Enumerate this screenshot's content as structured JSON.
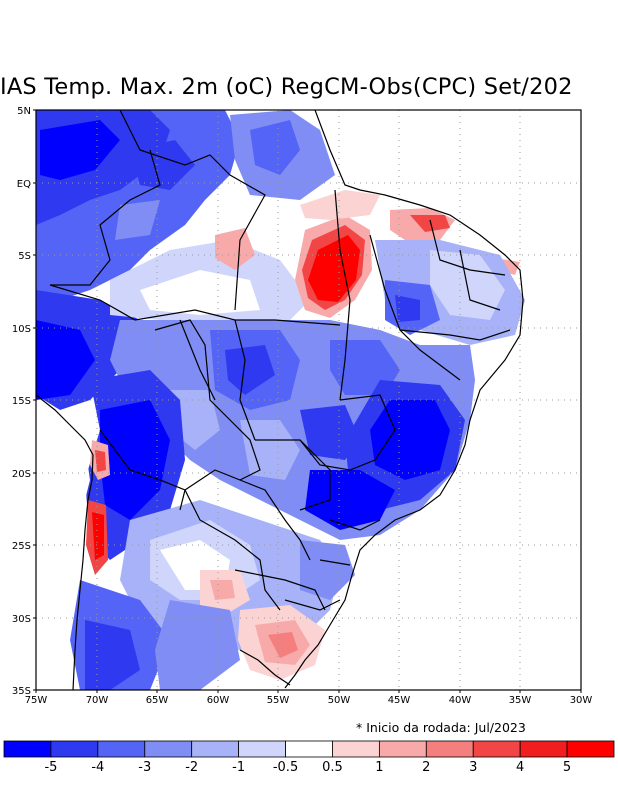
{
  "title": "IAS Temp. Max. 2m (oC) RegCM-Obs(CPC) Set/202",
  "note": "* Inicio da rodada: Jul/2023",
  "y_labels": [
    "5N",
    "EQ",
    "5S",
    "10S",
    "15S",
    "20S",
    "25S",
    "30S",
    "35S"
  ],
  "x_labels": [
    "75W",
    "70W",
    "65W",
    "60W",
    "55W",
    "50W",
    "45W",
    "40W",
    "35W",
    "30W"
  ],
  "colorbar": {
    "labels": [
      "-5",
      "-4",
      "-3",
      "-2",
      "-1",
      "-0.5",
      "0.5",
      "1",
      "2",
      "3",
      "4",
      "5"
    ],
    "colors": [
      "#0000ff",
      "#2e39f0",
      "#5464f6",
      "#7f8df5",
      "#a7b2f8",
      "#d0d6fb",
      "#ffffff",
      "#fcd3d3",
      "#f8a9a9",
      "#f57e7e",
      "#f24646",
      "#f01e1e",
      "#ff0000"
    ]
  }
}
